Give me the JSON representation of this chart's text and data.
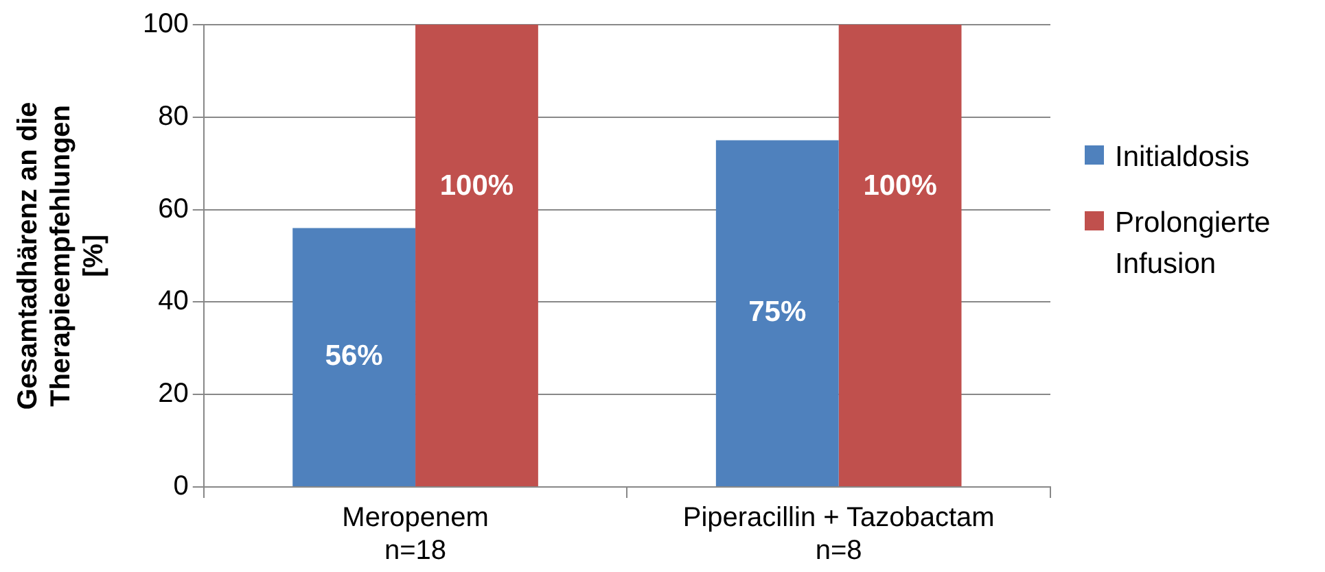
{
  "chart_data": {
    "type": "bar",
    "ylabel": "Gesamtadhärenz an die\nTherapieempfehlungen\n[%]",
    "categories": [
      "Meropenem\nn=18",
      "Piperacillin + Tazobactam\nn=8"
    ],
    "series": [
      {
        "name": "Initialdosis",
        "color": "#4f81bd",
        "values": [
          56,
          75
        ],
        "value_labels": [
          "56%",
          "75%"
        ]
      },
      {
        "name": "Prolongierte Infusion",
        "color": "#c0504d",
        "values": [
          100,
          100
        ],
        "value_labels": [
          "100%",
          "100%"
        ]
      }
    ],
    "ylim": [
      0,
      100
    ],
    "yticks": [
      0,
      20,
      40,
      60,
      80,
      100
    ],
    "grid": "y",
    "legend": "right"
  }
}
